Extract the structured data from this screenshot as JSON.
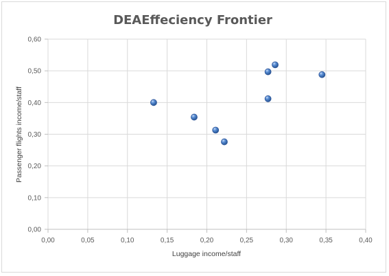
{
  "chart_data": {
    "type": "scatter",
    "title": "DEAEffeciency Frontier",
    "xlabel": "Luggage income/staff",
    "ylabel": "Passenger flights income/staff",
    "xlim": [
      0,
      0.4
    ],
    "ylim": [
      0,
      0.6
    ],
    "xticks": [
      "0,00",
      "0,05",
      "0,10",
      "0,15",
      "0,20",
      "0,25",
      "0,30",
      "0,35",
      "0,40"
    ],
    "yticks": [
      "0,00",
      "0,10",
      "0,20",
      "0,30",
      "0,40",
      "0,50",
      "0,60"
    ],
    "grid": true,
    "legend": "none",
    "marker_color": "#4472c4",
    "points": [
      {
        "x": 0.133,
        "y": 0.4
      },
      {
        "x": 0.184,
        "y": 0.354
      },
      {
        "x": 0.211,
        "y": 0.313
      },
      {
        "x": 0.222,
        "y": 0.276
      },
      {
        "x": 0.277,
        "y": 0.497
      },
      {
        "x": 0.277,
        "y": 0.412
      },
      {
        "x": 0.286,
        "y": 0.519
      },
      {
        "x": 0.345,
        "y": 0.488
      }
    ]
  }
}
